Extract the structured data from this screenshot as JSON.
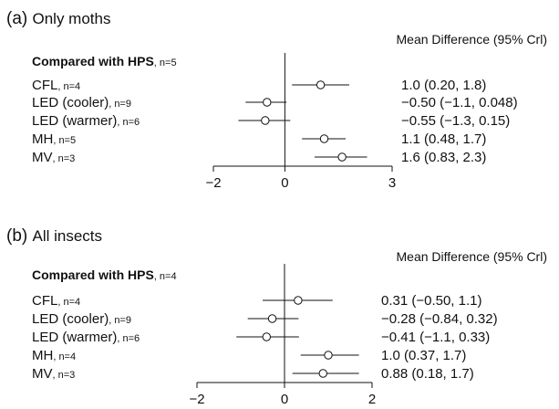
{
  "chart_data": [
    {
      "type": "forest",
      "panel_label": "(a)",
      "title": "Only moths",
      "column_header": "Mean Difference (95% Crl)",
      "group_label": {
        "bold": "Compared with HPS",
        "n": ", n=5"
      },
      "xticks": [
        -2,
        0,
        3
      ],
      "xlim": [
        -2,
        3
      ],
      "reference_line": 0,
      "rows": [
        {
          "name": "CFL",
          "n": ", n=4",
          "mean": 1.0,
          "lo": 0.2,
          "hi": 1.8,
          "label": "1.0 (0.20, 1.8)"
        },
        {
          "name": "LED (cooler)",
          "n": ", n=9",
          "mean": -0.5,
          "lo": -1.1,
          "hi": 0.048,
          "label": "−0.50 (−1.1, 0.048)"
        },
        {
          "name": "LED (warmer)",
          "n": ", n=6",
          "mean": -0.55,
          "lo": -1.3,
          "hi": 0.15,
          "label": "−0.55 (−1.3, 0.15)"
        },
        {
          "name": "MH",
          "n": ", n=5",
          "mean": 1.1,
          "lo": 0.48,
          "hi": 1.7,
          "label": "1.1 (0.48, 1.7)"
        },
        {
          "name": "MV",
          "n": ", n=3",
          "mean": 1.6,
          "lo": 0.83,
          "hi": 2.3,
          "label": "1.6 (0.83, 2.3)"
        }
      ]
    },
    {
      "type": "forest",
      "panel_label": "(b)",
      "title": "All insects",
      "column_header": "Mean Difference (95% Crl)",
      "group_label": {
        "bold": "Compared with HPS",
        "n": ", n=4"
      },
      "xticks": [
        -2,
        0,
        2
      ],
      "xlim": [
        -2,
        2
      ],
      "reference_line": 0,
      "rows": [
        {
          "name": "CFL",
          "n": ", n=4",
          "mean": 0.31,
          "lo": -0.5,
          "hi": 1.1,
          "label": "0.31 (−0.50, 1.1)"
        },
        {
          "name": "LED (cooler)",
          "n": ", n=9",
          "mean": -0.28,
          "lo": -0.84,
          "hi": 0.32,
          "label": "−0.28 (−0.84, 0.32)"
        },
        {
          "name": "LED (warmer)",
          "n": ", n=6",
          "mean": -0.41,
          "lo": -1.1,
          "hi": 0.33,
          "label": "−0.41 (−1.1, 0.33)"
        },
        {
          "name": "MH",
          "n": ", n=4",
          "mean": 1.0,
          "lo": 0.37,
          "hi": 1.7,
          "label": "1.0 (0.37, 1.7)"
        },
        {
          "name": "MV",
          "n": ", n=3",
          "mean": 0.88,
          "lo": 0.18,
          "hi": 1.7,
          "label": "0.88 (0.18, 1.7)"
        }
      ]
    }
  ]
}
